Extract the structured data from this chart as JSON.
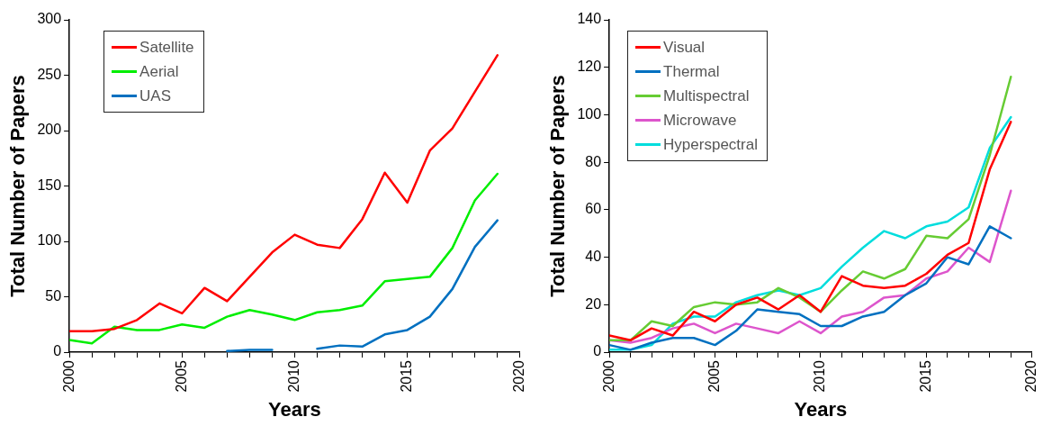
{
  "chart_data": [
    {
      "type": "line",
      "xlabel": "Years",
      "ylabel": "Total Number of Papers",
      "x": [
        2000,
        2001,
        2002,
        2003,
        2004,
        2005,
        2006,
        2007,
        2008,
        2009,
        2010,
        2011,
        2012,
        2013,
        2014,
        2015,
        2016,
        2017,
        2018,
        2019
      ],
      "xlim": [
        2000,
        2020
      ],
      "xticks": [
        2000,
        {
          "value": 2001,
          "label": null
        },
        {
          "value": 2002,
          "label": null
        },
        {
          "value": 2003,
          "label": null
        },
        {
          "value": 2004,
          "label": null
        },
        2005,
        {
          "value": 2006,
          "label": null
        },
        {
          "value": 2007,
          "label": null
        },
        {
          "value": 2008,
          "label": null
        },
        {
          "value": 2009,
          "label": null
        },
        2010,
        {
          "value": 2011,
          "label": null
        },
        {
          "value": 2012,
          "label": null
        },
        {
          "value": 2013,
          "label": null
        },
        {
          "value": 2014,
          "label": null
        },
        2015,
        {
          "value": 2016,
          "label": null
        },
        {
          "value": 2017,
          "label": null
        },
        {
          "value": 2018,
          "label": null
        },
        {
          "value": 2019,
          "label": null
        },
        2020
      ],
      "ylim": [
        0,
        300
      ],
      "yticks": [
        0,
        50,
        100,
        150,
        200,
        250,
        300
      ],
      "grid": false,
      "legend": "top left",
      "marker": "none",
      "line_style": "solid",
      "series": [
        {
          "name": "Satellite",
          "color": "#ff0000",
          "values": [
            19,
            19,
            21,
            29,
            44,
            35,
            58,
            46,
            68,
            90,
            106,
            97,
            94,
            120,
            162,
            135,
            182,
            202,
            235,
            268
          ]
        },
        {
          "name": "Aerial",
          "color": "#00ee00",
          "values": [
            11,
            8,
            23,
            20,
            20,
            25,
            22,
            32,
            38,
            34,
            29,
            36,
            38,
            42,
            64,
            66,
            68,
            94,
            137,
            161
          ]
        },
        {
          "name": "UAS",
          "color": "#0070c0",
          "values": [
            null,
            null,
            null,
            null,
            null,
            null,
            null,
            1,
            2,
            2,
            null,
            3,
            6,
            5,
            16,
            20,
            32,
            57,
            95,
            119
          ]
        }
      ]
    },
    {
      "type": "line",
      "xlabel": "Years",
      "ylabel": "Total Number of Papers",
      "x": [
        2000,
        2001,
        2002,
        2003,
        2004,
        2005,
        2006,
        2007,
        2008,
        2009,
        2010,
        2011,
        2012,
        2013,
        2014,
        2015,
        2016,
        2017,
        2018,
        2019
      ],
      "xlim": [
        2000,
        2020
      ],
      "xticks": [
        2000,
        {
          "value": 2001,
          "label": null
        },
        {
          "value": 2002,
          "label": null
        },
        {
          "value": 2003,
          "label": null
        },
        {
          "value": 2004,
          "label": null
        },
        2005,
        {
          "value": 2006,
          "label": null
        },
        {
          "value": 2007,
          "label": null
        },
        {
          "value": 2008,
          "label": null
        },
        {
          "value": 2009,
          "label": null
        },
        2010,
        {
          "value": 2011,
          "label": null
        },
        {
          "value": 2012,
          "label": null
        },
        {
          "value": 2013,
          "label": null
        },
        {
          "value": 2014,
          "label": null
        },
        2015,
        {
          "value": 2016,
          "label": null
        },
        {
          "value": 2017,
          "label": null
        },
        {
          "value": 2018,
          "label": null
        },
        {
          "value": 2019,
          "label": null
        },
        2020
      ],
      "ylim": [
        0,
        140
      ],
      "yticks": [
        0,
        20,
        40,
        60,
        80,
        100,
        120,
        140
      ],
      "grid": false,
      "legend": "top left",
      "marker": "none",
      "line_style": "solid",
      "series": [
        {
          "name": "Visual",
          "color": "#ff0000",
          "values": [
            7,
            5,
            10,
            7,
            17,
            13,
            20,
            23,
            18,
            24,
            17,
            32,
            28,
            27,
            28,
            33,
            41,
            46,
            77,
            97
          ]
        },
        {
          "name": "Thermal",
          "color": "#0070c0",
          "values": [
            3,
            1,
            4,
            6,
            6,
            3,
            9,
            18,
            17,
            16,
            11,
            11,
            15,
            17,
            24,
            29,
            40,
            37,
            53,
            48
          ]
        },
        {
          "name": "Multispectral",
          "color": "#66cc33",
          "values": [
            5,
            5,
            13,
            11,
            19,
            21,
            20,
            21,
            27,
            23,
            17,
            26,
            34,
            31,
            35,
            49,
            48,
            56,
            83,
            116
          ]
        },
        {
          "name": "Microwave",
          "color": "#dd55cc",
          "values": [
            5,
            4,
            6,
            10,
            12,
            8,
            12,
            10,
            8,
            13,
            8,
            15,
            17,
            23,
            24,
            31,
            34,
            44,
            38,
            68
          ]
        },
        {
          "name": "Hyperspectral",
          "color": "#00dddd",
          "values": [
            1,
            1,
            3,
            12,
            15,
            15,
            21,
            24,
            26,
            24,
            27,
            36,
            44,
            51,
            48,
            53,
            55,
            61,
            86,
            99
          ]
        }
      ]
    }
  ]
}
